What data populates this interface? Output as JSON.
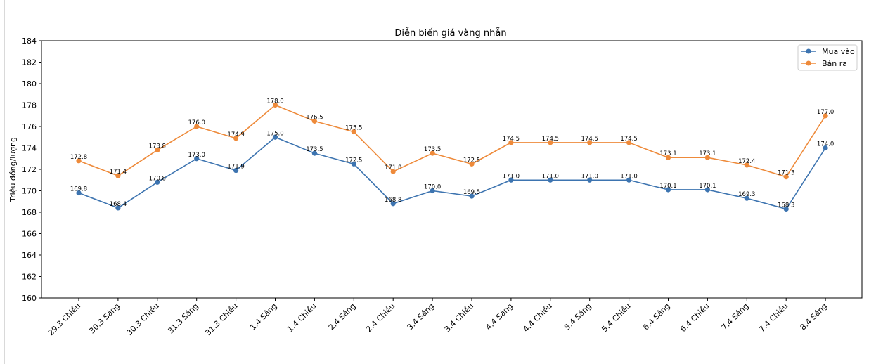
{
  "chart_data": {
    "type": "line",
    "title": "Diễn biến giá vàng nhẫn",
    "xlabel": "",
    "ylabel": "Triệu đồng/lượng",
    "ylim": [
      160,
      184
    ],
    "yticks": [
      160,
      162,
      164,
      166,
      168,
      170,
      172,
      174,
      176,
      178,
      180,
      182,
      184
    ],
    "grid": false,
    "legend_position": "top-right",
    "categories": [
      "29.3 Chiều",
      "30.3 Sáng",
      "30.3 Chiều",
      "31.3 Sáng",
      "31.3 Chiều",
      "1.4 Sáng",
      "1.4 Chiều",
      "2.4 Sáng",
      "2.4 Chiều",
      "3.4 Sáng",
      "3.4 Chiều",
      "4.4 Sáng",
      "4.4 Chiều",
      "5.4 Sáng",
      "5.4 Chiều",
      "6.4 Sáng",
      "6.4 Chiều",
      "7.4 Sáng",
      "7.4 Chiều",
      "8.4 Sáng"
    ],
    "series": [
      {
        "name": "Mua vào",
        "color": "#3d74b0",
        "values": [
          169.8,
          168.4,
          170.8,
          173.0,
          171.9,
          175.0,
          173.5,
          172.5,
          168.8,
          170.0,
          169.5,
          171.0,
          171.0,
          171.0,
          171.0,
          170.1,
          170.1,
          169.3,
          168.3,
          174.0
        ]
      },
      {
        "name": "Bán ra",
        "color": "#ee8a3a",
        "values": [
          172.8,
          171.4,
          173.8,
          176.0,
          174.9,
          178.0,
          176.5,
          175.5,
          171.8,
          173.5,
          172.5,
          174.5,
          174.5,
          174.5,
          174.5,
          173.1,
          173.1,
          172.4,
          171.3,
          177.0
        ]
      }
    ]
  }
}
